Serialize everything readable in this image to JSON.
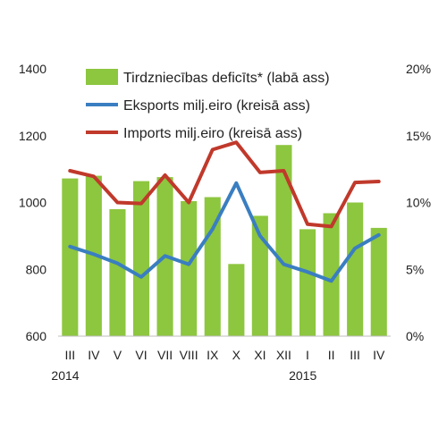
{
  "chart_data": {
    "type": "bar",
    "categories": [
      "III",
      "IV",
      "V",
      "VI",
      "VII",
      "VIII",
      "IX",
      "X",
      "XI",
      "XII",
      "I",
      "II",
      "III",
      "IV"
    ],
    "year_labels": [
      {
        "label": "2014",
        "category_index": 0
      },
      {
        "label": "2015",
        "category_index": 10
      }
    ],
    "series": [
      {
        "name": "Tirdzniecības deficīts* (labā ass)",
        "type": "bar",
        "axis": "right",
        "color": "#8dc63f",
        "values": [
          11.8,
          12.0,
          9.5,
          11.6,
          11.9,
          10.1,
          10.4,
          5.4,
          9.0,
          14.3,
          8.0,
          9.2,
          10.0,
          8.1
        ]
      },
      {
        "name": "Eksports milj.eiro (kreisā ass)",
        "type": "line",
        "axis": "left",
        "color": "#3a7ec1",
        "values": [
          868,
          845,
          818,
          777,
          840,
          815,
          920,
          1058,
          900,
          815,
          792,
          765,
          863,
          903
        ]
      },
      {
        "name": "Imports milj.eiro (kreisā ass)",
        "type": "line",
        "axis": "left",
        "color": "#c0392b",
        "values": [
          1095,
          1078,
          1000,
          997,
          1082,
          1000,
          1158,
          1180,
          1090,
          1095,
          935,
          928,
          1060,
          1063
        ]
      }
    ],
    "left_axis": {
      "min": 600,
      "max": 1400,
      "ticks": [
        "600",
        "800",
        "1000",
        "1200",
        "1400"
      ]
    },
    "right_axis": {
      "min": 0,
      "max": 20,
      "ticks": [
        "0%",
        "5%",
        "10%",
        "15%",
        "20%"
      ]
    },
    "legend_position": "top"
  }
}
